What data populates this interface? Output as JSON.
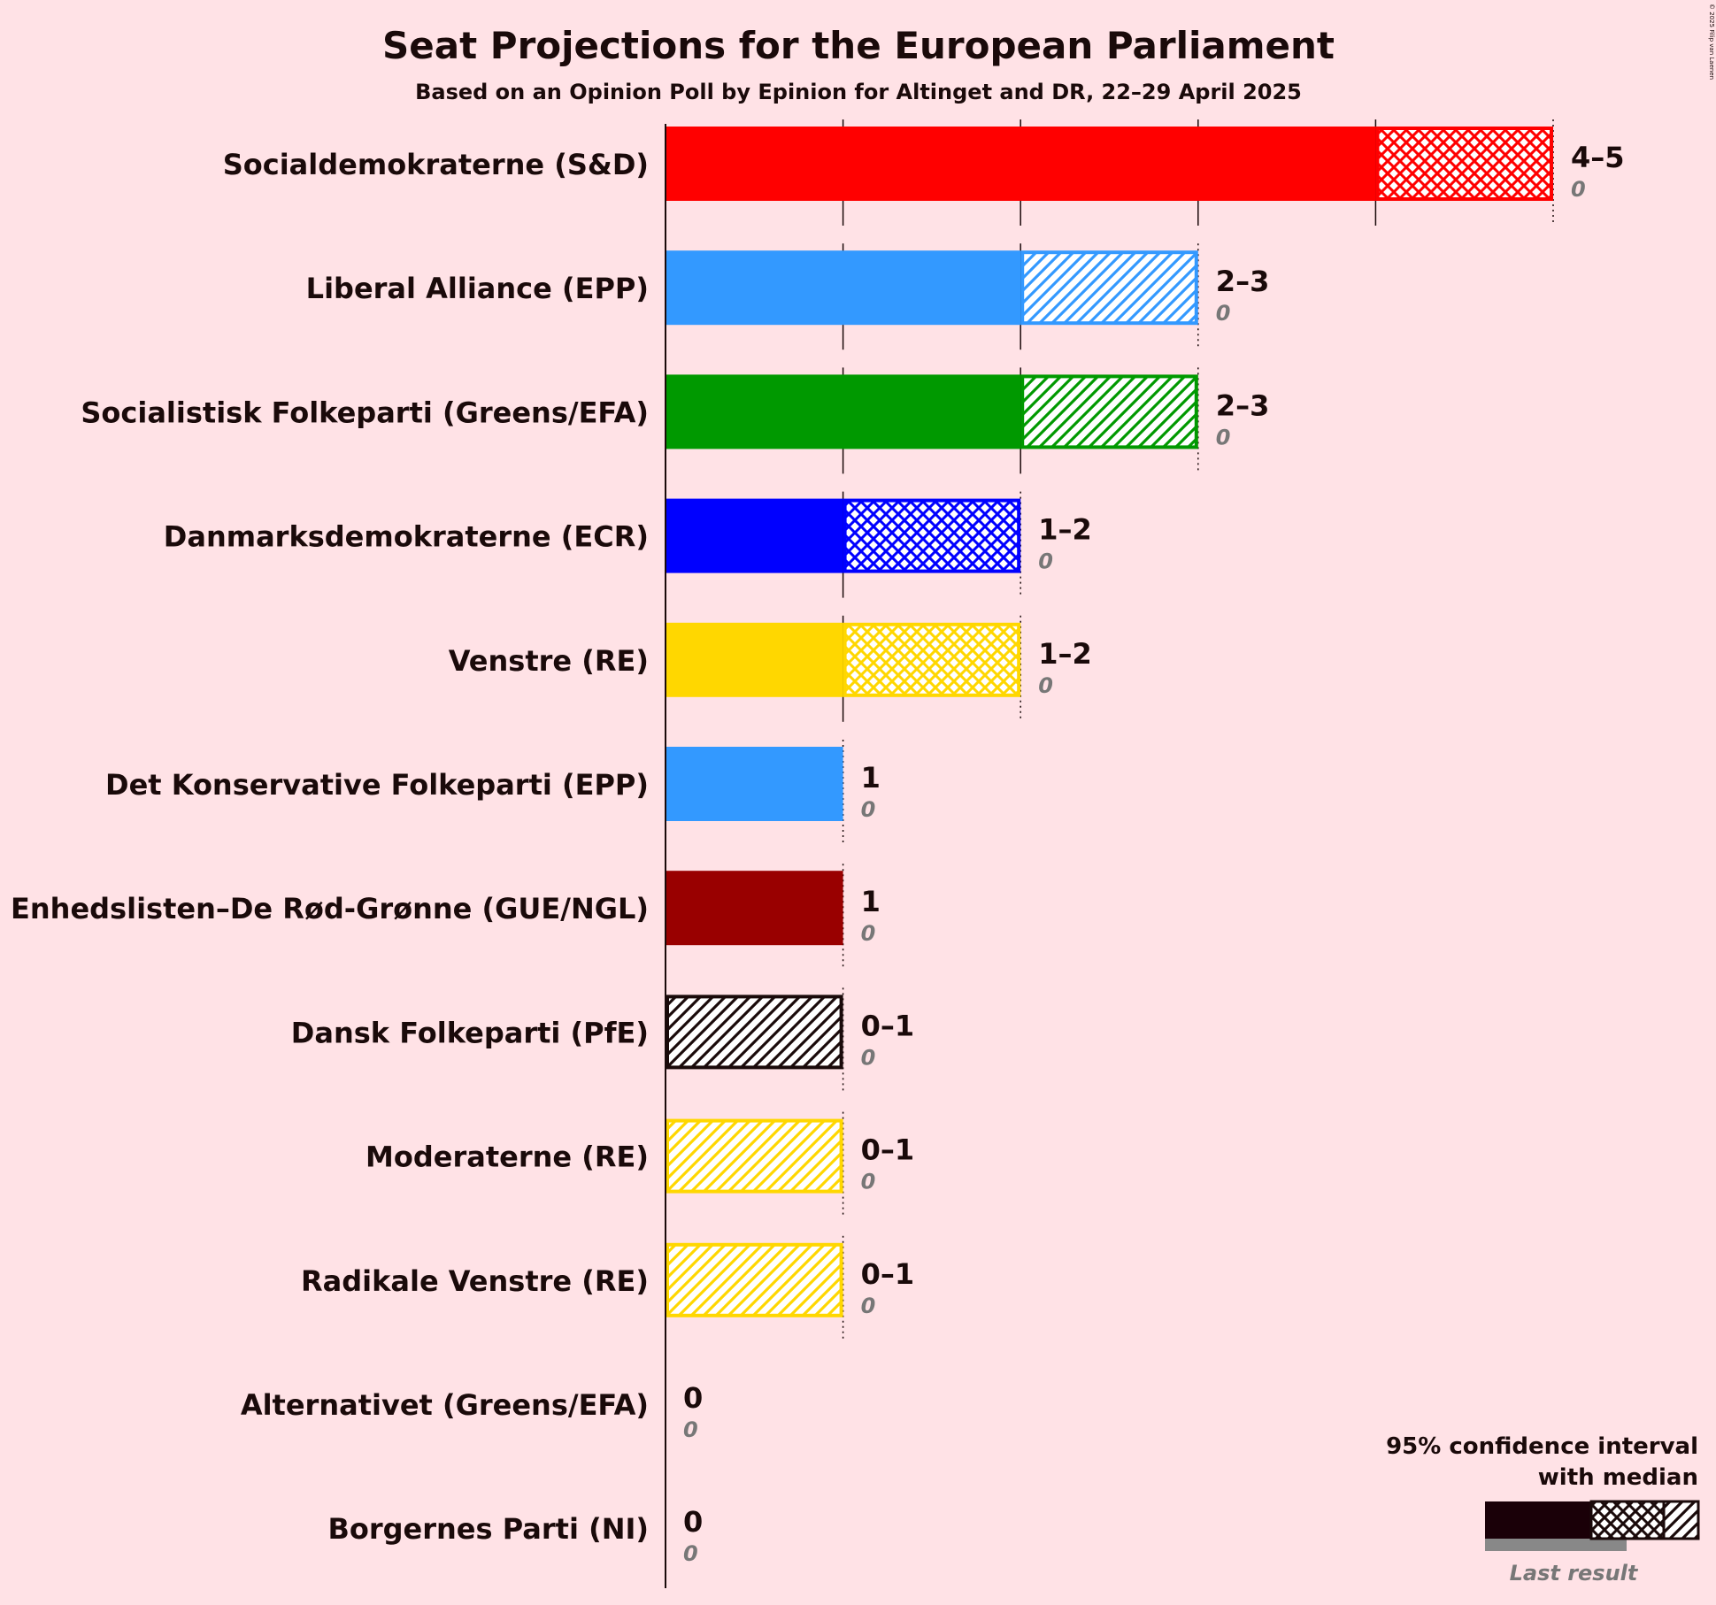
{
  "copyright": "© 2025 Filip van Laenen",
  "chart_data": {
    "type": "bar",
    "orientation": "horizontal",
    "title": "Seat Projections for the European Parliament",
    "subtitle": "Based on an Opinion Poll by Epinion for Altinget and DR, 22–29 April 2025",
    "xlabel": "",
    "ylabel": "",
    "xlim": [
      0,
      5
    ],
    "grid": "vertical dotted/solid lines at each seat",
    "legend_placement": "bottom-right",
    "series": [
      {
        "name": "Socialdemokraterne (S&D)",
        "low": 4,
        "median": 4,
        "high": 5,
        "last_result": 0,
        "range_label": "4–5",
        "last_label": "0",
        "color": "#FF0000",
        "pattern": "cross"
      },
      {
        "name": "Liberal Alliance (EPP)",
        "low": 2,
        "median": 2,
        "high": 3,
        "last_result": 0,
        "range_label": "2–3",
        "last_label": "0",
        "color": "#3399FF",
        "pattern": "diag"
      },
      {
        "name": "Socialistisk Folkeparti (Greens/EFA)",
        "low": 2,
        "median": 2,
        "high": 3,
        "last_result": 0,
        "range_label": "2–3",
        "last_label": "0",
        "color": "#009900",
        "pattern": "diag"
      },
      {
        "name": "Danmarksdemokraterne (ECR)",
        "low": 1,
        "median": 1,
        "high": 2,
        "last_result": 0,
        "range_label": "1–2",
        "last_label": "0",
        "color": "#0000FF",
        "pattern": "cross"
      },
      {
        "name": "Venstre (RE)",
        "low": 1,
        "median": 1,
        "high": 2,
        "last_result": 0,
        "range_label": "1–2",
        "last_label": "0",
        "color": "#FFD700",
        "pattern": "cross"
      },
      {
        "name": "Det Konservative Folkeparti (EPP)",
        "low": 1,
        "median": 1,
        "high": 1,
        "last_result": 0,
        "range_label": "1",
        "last_label": "0",
        "color": "#3399FF",
        "pattern": "none"
      },
      {
        "name": "Enhedslisten–De Rød-Grønne (GUE/NGL)",
        "low": 1,
        "median": 1,
        "high": 1,
        "last_result": 0,
        "range_label": "1",
        "last_label": "0",
        "color": "#990000",
        "pattern": "none"
      },
      {
        "name": "Dansk Folkeparti (PfE)",
        "low": 0,
        "median": 0,
        "high": 1,
        "last_result": 0,
        "range_label": "0–1",
        "last_label": "0",
        "color": "#1A0A0A",
        "pattern": "diag"
      },
      {
        "name": "Moderaterne (RE)",
        "low": 0,
        "median": 0,
        "high": 1,
        "last_result": 0,
        "range_label": "0–1",
        "last_label": "0",
        "color": "#FFD700",
        "pattern": "diag"
      },
      {
        "name": "Radikale Venstre (RE)",
        "low": 0,
        "median": 0,
        "high": 1,
        "last_result": 0,
        "range_label": "0–1",
        "last_label": "0",
        "color": "#FFD700",
        "pattern": "diag"
      },
      {
        "name": "Alternativet (Greens/EFA)",
        "low": 0,
        "median": 0,
        "high": 0,
        "last_result": 0,
        "range_label": "0",
        "last_label": "0",
        "color": "#009900",
        "pattern": "none"
      },
      {
        "name": "Borgernes Parti (NI)",
        "low": 0,
        "median": 0,
        "high": 0,
        "last_result": 0,
        "range_label": "0",
        "last_label": "0",
        "color": "#666666",
        "pattern": "none"
      }
    ],
    "legend": {
      "line1": "95% confidence interval",
      "line2": "with median",
      "last_result_label": "Last result"
    }
  }
}
